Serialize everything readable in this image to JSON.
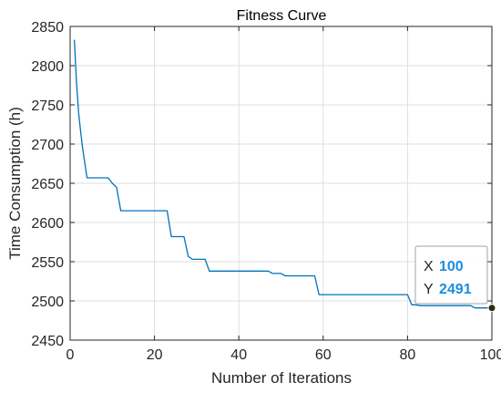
{
  "chart_data": {
    "type": "line",
    "title": "Fitness Curve",
    "xlabel": "Number of Iterations",
    "ylabel": "Time Consumption (h)",
    "xlim": [
      0,
      100
    ],
    "ylim": [
      2450,
      2850
    ],
    "x_ticks": [
      0,
      20,
      40,
      60,
      80,
      100
    ],
    "y_ticks": [
      2450,
      2500,
      2550,
      2600,
      2650,
      2700,
      2750,
      2800,
      2850
    ],
    "grid": true,
    "line_color": "#0072BD",
    "series": [
      {
        "x": [
          1,
          1.5,
          2,
          2.5,
          3,
          3.5,
          4,
          5,
          6,
          7,
          8,
          9,
          10,
          11,
          12,
          13,
          14,
          15,
          16,
          17,
          18,
          19,
          20,
          21,
          22,
          23,
          24,
          25,
          26,
          27,
          28,
          29,
          30,
          31,
          32,
          33,
          34,
          35,
          40,
          45,
          47,
          48,
          49,
          50,
          51,
          52,
          55,
          57,
          58,
          59,
          60,
          65,
          70,
          75,
          80,
          81,
          82,
          83,
          84,
          85,
          90,
          93,
          94,
          95,
          96,
          97,
          98,
          99,
          100
        ],
        "y": [
          2833,
          2780,
          2740,
          2715,
          2693,
          2675,
          2657,
          2657,
          2657,
          2657,
          2657,
          2657,
          2650,
          2645,
          2615,
          2615,
          2615,
          2615,
          2615,
          2615,
          2615,
          2615,
          2615,
          2615,
          2615,
          2615,
          2582,
          2582,
          2582,
          2582,
          2557,
          2553,
          2553,
          2553,
          2553,
          2538,
          2538,
          2538,
          2538,
          2538,
          2538,
          2535,
          2535,
          2535,
          2532,
          2532,
          2532,
          2532,
          2532,
          2508,
          2508,
          2508,
          2508,
          2508,
          2508,
          2495,
          2495,
          2494,
          2494,
          2494,
          2494,
          2494,
          2494,
          2494,
          2491,
          2491,
          2491,
          2491,
          2491
        ]
      }
    ],
    "datatip": {
      "x_label": "X",
      "x_value": "100",
      "y_label": "Y",
      "y_value": "2491",
      "point": {
        "x": 100,
        "y": 2491
      }
    }
  }
}
